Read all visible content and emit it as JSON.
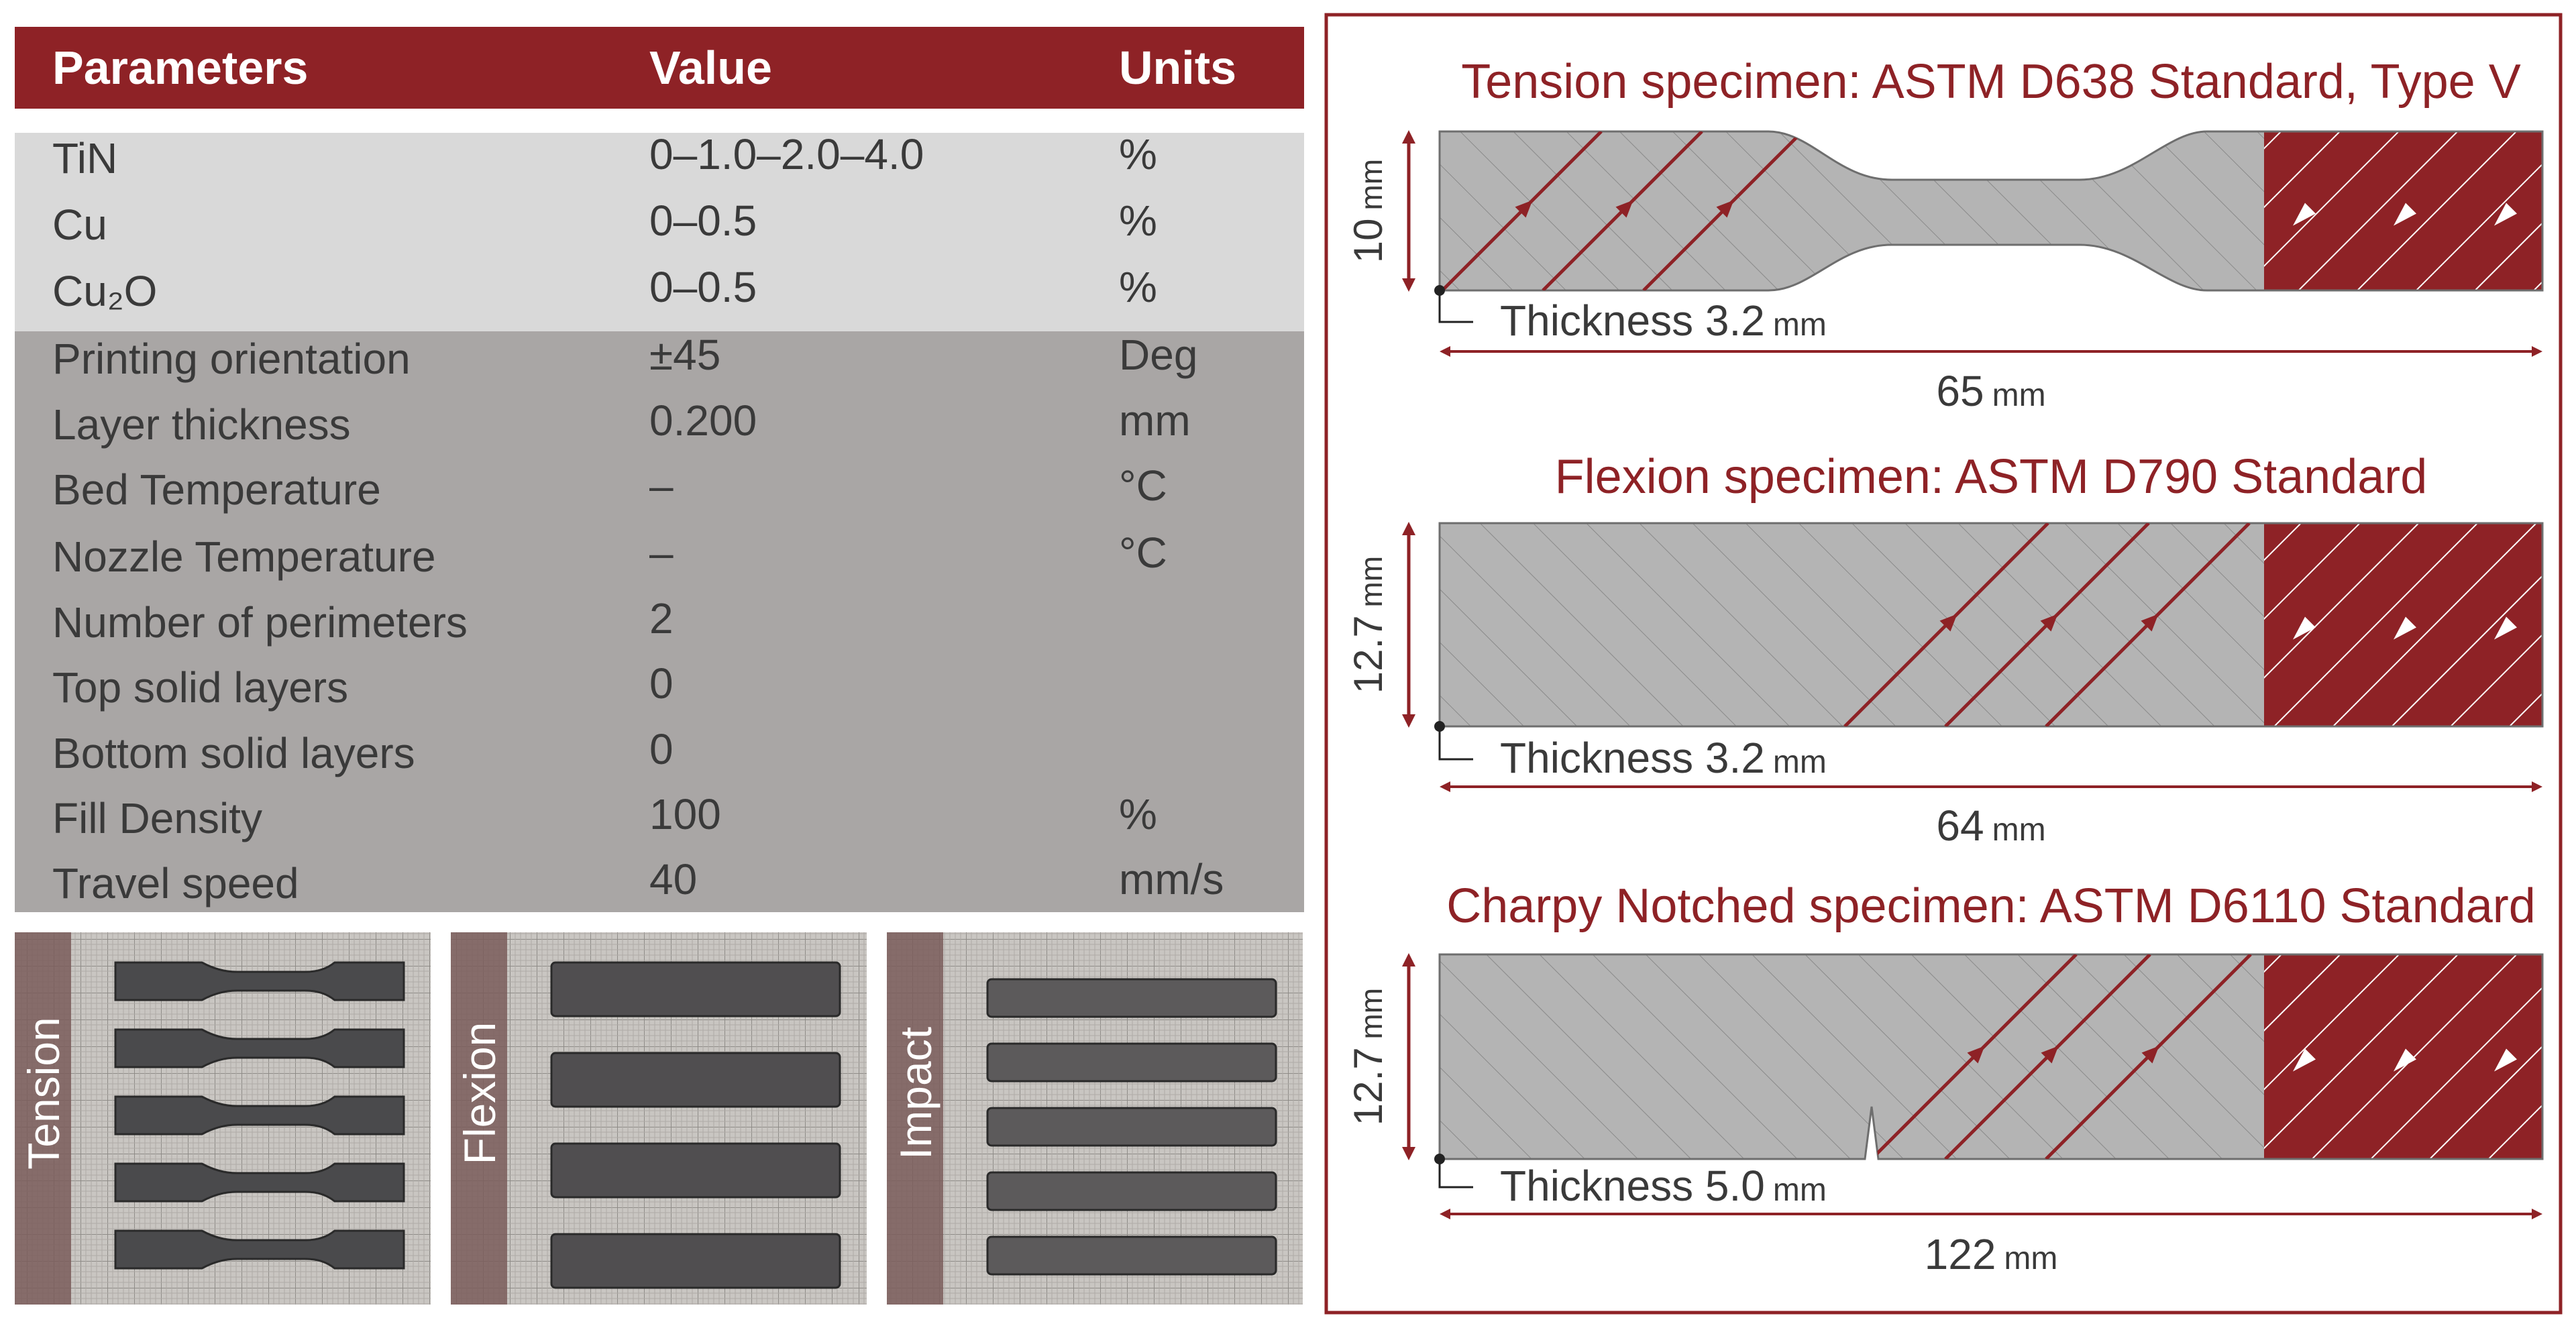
{
  "colors": {
    "accent": "#8e2226",
    "grey_dark": "#a9a6a5",
    "grey_light": "#d9d9d9",
    "specimen_fill": "#b4b4b4",
    "white": "#ffffff"
  },
  "table": {
    "headers": {
      "parameters": "Parameters",
      "value": "Value",
      "units": "Units"
    },
    "rows": [
      {
        "param": "TiN",
        "value": "0–1.0–2.0–4.0",
        "unit": "%"
      },
      {
        "param": "Cu",
        "value": "0–0.5",
        "unit": "%"
      },
      {
        "param": "Cu₂O",
        "value": "0–0.5",
        "unit": "%"
      },
      {
        "param": "Printing orientation",
        "value": "±45",
        "unit": "Deg"
      },
      {
        "param": "Layer thickness",
        "value": "0.200",
        "unit": "mm"
      },
      {
        "param": "Bed Temperature",
        "value": "–",
        "unit": "°C"
      },
      {
        "param": "Nozzle Temperature",
        "value": "–",
        "unit": "°C"
      },
      {
        "param": "Number of perimeters",
        "value": "2",
        "unit": ""
      },
      {
        "param": "Top solid layers",
        "value": "0",
        "unit": ""
      },
      {
        "param": "Bottom solid layers",
        "value": "0",
        "unit": ""
      },
      {
        "param": "Fill Density",
        "value": "100",
        "unit": "%"
      },
      {
        "param": "Travel speed",
        "value": "40",
        "unit": "mm/s"
      }
    ]
  },
  "photos": [
    {
      "label": "Tension",
      "kind": "dogbone",
      "count": 5
    },
    {
      "label": "Flexion",
      "kind": "bar",
      "count": 4
    },
    {
      "label": "Impact",
      "kind": "thin-bar",
      "count": 5
    }
  ],
  "specimens": [
    {
      "title": "Tension specimen: ASTM D638 Standard, Type V",
      "shape": "dogbone",
      "height_value": "10",
      "height_unit": "mm",
      "thickness_label": "Thickness 3.2",
      "thickness_unit": "mm",
      "length_value": "65",
      "length_unit": "mm"
    },
    {
      "title": "Flexion specimen: ASTM D790 Standard",
      "shape": "bar",
      "height_value": "12.7",
      "height_unit": "mm",
      "thickness_label": "Thickness 3.2",
      "thickness_unit": "mm",
      "length_value": "64",
      "length_unit": "mm"
    },
    {
      "title": "Charpy Notched specimen: ASTM D6110 Standard",
      "shape": "notched-bar",
      "height_value": "12.7",
      "height_unit": "mm",
      "thickness_label": "Thickness 5.0",
      "thickness_unit": "mm",
      "length_value": "122",
      "length_unit": "mm"
    }
  ]
}
